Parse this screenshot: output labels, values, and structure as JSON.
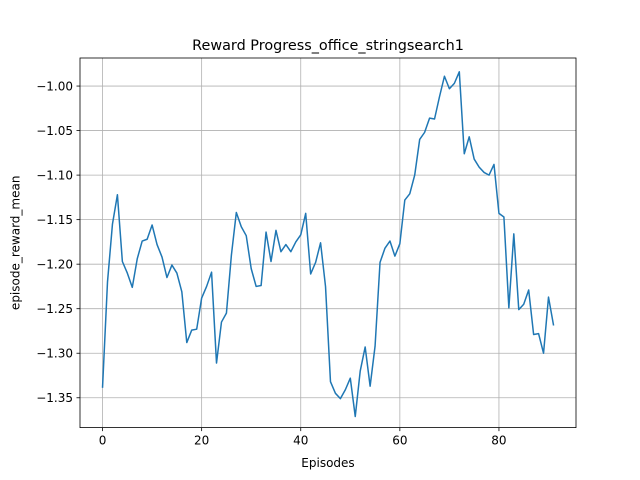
{
  "chart_data": {
    "type": "line",
    "title": "Reward Progress_office_stringsearch1",
    "xlabel": "Episodes",
    "ylabel": "episode_reward_mean",
    "xlim": [
      -4.55,
      95.55
    ],
    "ylim": [
      -1.3835,
      -0.9685
    ],
    "xticks": [
      0,
      20,
      40,
      60,
      80
    ],
    "yticks": [
      -1.35,
      -1.3,
      -1.25,
      -1.2,
      -1.15,
      -1.1,
      -1.05,
      -1.0
    ],
    "xtick_labels": [
      "0",
      "20",
      "40",
      "60",
      "80"
    ],
    "ytick_labels": [
      "−1.35",
      "−1.30",
      "−1.25",
      "−1.20",
      "−1.15",
      "−1.10",
      "−1.05",
      "−1.00"
    ],
    "grid": true,
    "line_color": "#1f77b4",
    "series": [
      {
        "x": [
          0,
          1,
          2,
          3,
          4,
          5,
          6,
          7,
          8,
          9,
          10,
          11,
          12,
          13,
          14,
          15,
          16,
          17,
          18,
          19,
          20,
          21,
          22,
          23,
          24,
          25,
          26,
          27,
          28,
          29,
          30,
          31,
          32,
          33,
          34,
          35,
          36,
          37,
          38,
          39,
          40,
          41,
          42,
          43,
          44,
          45,
          46,
          47,
          48,
          49,
          50,
          51,
          52,
          53,
          54,
          55,
          56,
          57,
          58,
          59,
          60,
          61,
          62,
          63,
          64,
          65,
          66,
          67,
          68,
          69,
          70,
          71,
          72,
          73,
          74,
          75,
          76,
          77,
          78,
          79,
          80,
          81,
          82,
          83,
          84,
          85,
          86,
          87,
          88,
          89,
          90,
          91
        ],
        "y": [
          -1.338,
          -1.22,
          -1.155,
          -1.122,
          -1.197,
          -1.21,
          -1.226,
          -1.194,
          -1.174,
          -1.172,
          -1.156,
          -1.178,
          -1.192,
          -1.215,
          -1.201,
          -1.21,
          -1.231,
          -1.288,
          -1.274,
          -1.273,
          -1.238,
          -1.225,
          -1.209,
          -1.311,
          -1.265,
          -1.255,
          -1.19,
          -1.142,
          -1.158,
          -1.168,
          -1.205,
          -1.225,
          -1.224,
          -1.164,
          -1.197,
          -1.162,
          -1.186,
          -1.178,
          -1.186,
          -1.175,
          -1.167,
          -1.143,
          -1.211,
          -1.198,
          -1.176,
          -1.225,
          -1.332,
          -1.345,
          -1.351,
          -1.341,
          -1.328,
          -1.371,
          -1.32,
          -1.293,
          -1.337,
          -1.292,
          -1.198,
          -1.182,
          -1.174,
          -1.191,
          -1.177,
          -1.128,
          -1.121,
          -1.1,
          -1.06,
          -1.052,
          -1.036,
          -1.037,
          -1.012,
          -0.989,
          -1.003,
          -0.997,
          -0.984,
          -1.076,
          -1.057,
          -1.082,
          -1.091,
          -1.097,
          -1.1,
          -1.088,
          -1.143,
          -1.147,
          -1.249,
          -1.166,
          -1.251,
          -1.245,
          -1.229,
          -1.279,
          -1.278,
          -1.3,
          -1.237,
          -1.268
        ]
      }
    ]
  }
}
